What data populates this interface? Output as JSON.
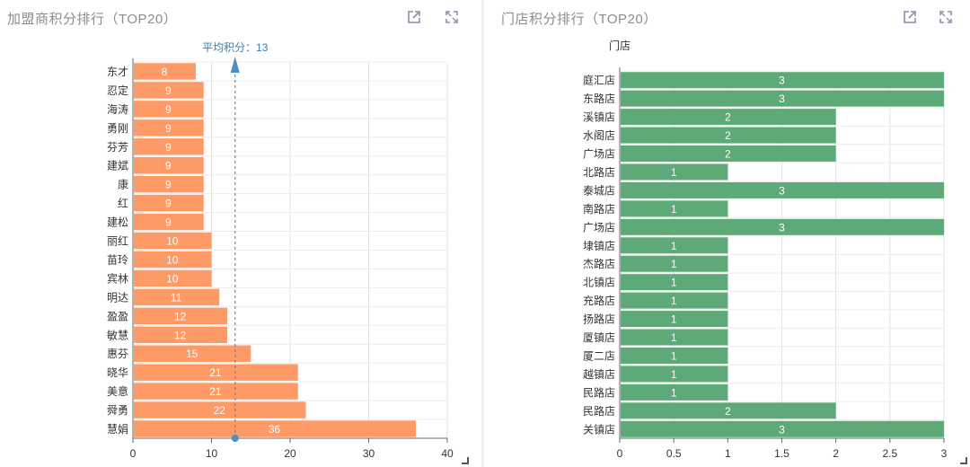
{
  "panels": [
    {
      "title": "加盟商积分排行（TOP20）",
      "icons": [
        "open-external-icon",
        "fullscreen-icon"
      ]
    },
    {
      "title": "门店积分排行（TOP20）",
      "icons": [
        "open-external-icon",
        "fullscreen-icon"
      ]
    }
  ],
  "chart_data": [
    {
      "type": "bar",
      "orientation": "horizontal",
      "title": "加盟商积分排行（TOP20）",
      "categories": [
        "东才",
        "忍定",
        "海涛",
        "勇刚",
        "芬芳",
        "建斌",
        "康",
        "红",
        "建松",
        "丽红",
        "苗玲",
        "宾林",
        "明达",
        "盈盈",
        "敏慧",
        "惠芬",
        "晓华",
        "美意",
        "舜勇",
        "慧娟"
      ],
      "values": [
        8,
        9,
        9,
        9,
        9,
        9,
        9,
        9,
        9,
        10,
        10,
        10,
        11,
        12,
        12,
        15,
        21,
        21,
        22,
        36
      ],
      "xlim": [
        0,
        40
      ],
      "xticks": [
        0,
        10,
        20,
        30,
        40
      ],
      "grid": true,
      "bar_color": "#fe9a66",
      "mark_line": {
        "value": 13,
        "label": "平均积分：13",
        "color": "#4b8fc1"
      }
    },
    {
      "type": "bar",
      "orientation": "horizontal",
      "title": "门店积分排行（TOP20）",
      "ylabel": "门店",
      "categories": [
        "庭汇店",
        "东路店",
        "溪镇店",
        "水阁店",
        "广场店",
        "北路店",
        "泰城店",
        "南路店",
        "广场店",
        "埭镇店",
        "杰路店",
        "北镇店",
        "充路店",
        "扬路店",
        "厦镇店",
        "厦二店",
        "越镇店",
        "民路店",
        "民路店",
        "关镇店"
      ],
      "values": [
        3,
        3,
        2,
        2,
        2,
        1,
        3,
        1,
        3,
        1,
        1,
        1,
        1,
        1,
        1,
        1,
        1,
        1,
        2,
        3
      ],
      "xlim": [
        0,
        3
      ],
      "xticks": [
        "0",
        "0.5",
        "1",
        "1.5",
        "2",
        "2.5",
        "3"
      ],
      "grid": true,
      "bar_color": "#5daa78"
    }
  ]
}
